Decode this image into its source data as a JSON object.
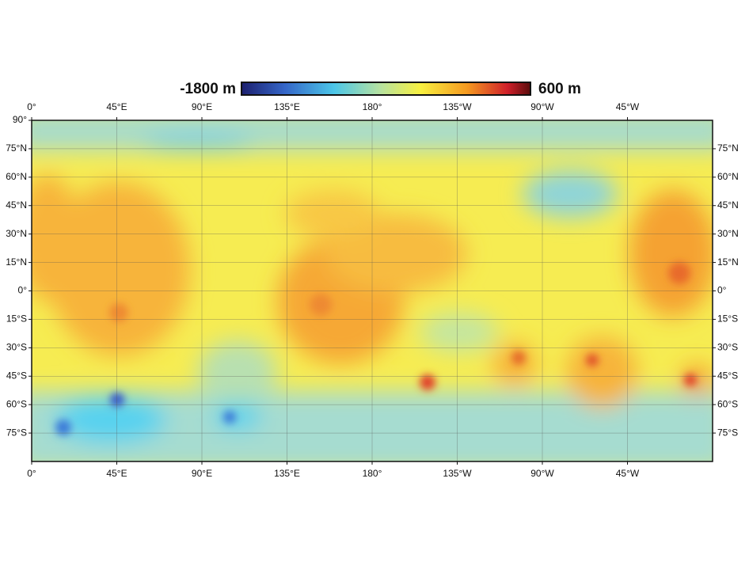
{
  "colorbar": {
    "min_label": "-1800 m",
    "max_label": "600 m"
  },
  "longitude_labels": [
    "0°",
    "45°E",
    "90°E",
    "135°E",
    "180°",
    "135°W",
    "90°W",
    "45°W"
  ],
  "latitude_labels": [
    "90°",
    "75°N",
    "60°N",
    "45°N",
    "30°N",
    "15°N",
    "0°",
    "15°S",
    "30°S",
    "45°S",
    "60°S",
    "75°S"
  ]
}
